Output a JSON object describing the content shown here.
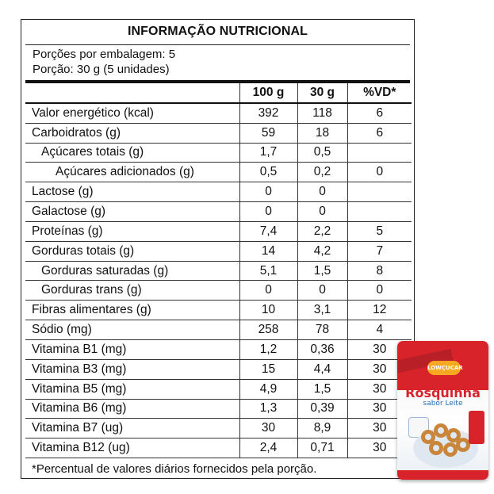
{
  "panel": {
    "title": "INFORMAÇÃO NUTRICIONAL",
    "servings_per_package": "Porções por embalagem: 5",
    "serving_size": "Porção:  30 g (5 unidades)",
    "headers": [
      "",
      "100 g",
      "30 g",
      "%VD*"
    ],
    "rows": [
      {
        "label": "Valor energético (kcal)",
        "v100": "392",
        "v30": "118",
        "vd": "6",
        "level": 0
      },
      {
        "label": "Carboidratos (g)",
        "v100": "59",
        "v30": "18",
        "vd": "6",
        "level": 0
      },
      {
        "label": "Açúcares totais (g)",
        "v100": "1,7",
        "v30": "0,5",
        "vd": "",
        "level": 1
      },
      {
        "label": "Açúcares adicionados (g)",
        "v100": "0,5",
        "v30": "0,2",
        "vd": "0",
        "level": 2
      },
      {
        "label": "Lactose (g)",
        "v100": "0",
        "v30": "0",
        "vd": "",
        "level": 0
      },
      {
        "label": "Galactose (g)",
        "v100": "0",
        "v30": "0",
        "vd": "",
        "level": 0
      },
      {
        "label": "Proteínas (g)",
        "v100": "7,4",
        "v30": "2,2",
        "vd": "5",
        "level": 0
      },
      {
        "label": "Gorduras totais (g)",
        "v100": "14",
        "v30": "4,2",
        "vd": "7",
        "level": 0
      },
      {
        "label": "Gorduras saturadas (g)",
        "v100": "5,1",
        "v30": "1,5",
        "vd": "8",
        "level": 1
      },
      {
        "label": "Gorduras trans (g)",
        "v100": "0",
        "v30": "0",
        "vd": "0",
        "level": 1
      },
      {
        "label": "Fibras alimentares (g)",
        "v100": "10",
        "v30": "3,1",
        "vd": "12",
        "level": 0
      },
      {
        "label": "Sódio (mg)",
        "v100": "258",
        "v30": "78",
        "vd": "4",
        "level": 0
      },
      {
        "label": "Vitamina B1 (mg)",
        "v100": "1,2",
        "v30": "0,36",
        "vd": "30",
        "level": 0
      },
      {
        "label": "Vitamina B3 (mg)",
        "v100": "15",
        "v30": "4,4",
        "vd": "30",
        "level": 0
      },
      {
        "label": "Vitamina B5 (mg)",
        "v100": "4,9",
        "v30": "1,5",
        "vd": "30",
        "level": 0
      },
      {
        "label": "Vitamina B6 (mg)",
        "v100": "1,3",
        "v30": "0,39",
        "vd": "30",
        "level": 0
      },
      {
        "label": "Vitamina B7 (ug)",
        "v100": "30",
        "v30": "8,9",
        "vd": "30",
        "level": 0
      },
      {
        "label": "Vitamina B12 (ug)",
        "v100": "2,4",
        "v30": "0,71",
        "vd": "30",
        "level": 0
      }
    ],
    "footnote": "*Percentual de valores diários fornecidos pela porção."
  },
  "package": {
    "logo": "LOWÇUCAR",
    "product": "Rosquinha",
    "flavor_prefix": "sabor",
    "flavor": "Leite",
    "colors": {
      "brand_red": "#d9232a",
      "logo_orange": "#f6a821",
      "flavor_blue": "#2a6bb5"
    }
  }
}
